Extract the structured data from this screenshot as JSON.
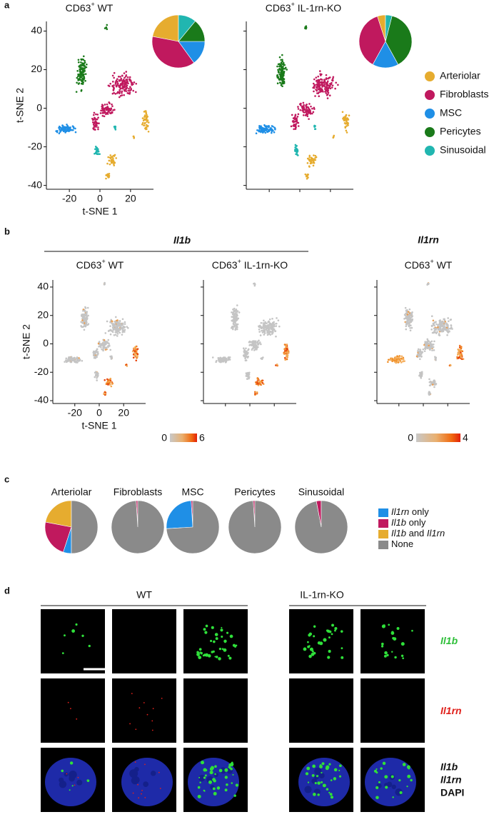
{
  "panel_a": {
    "label": "a",
    "plot_titles": [
      {
        "main": "CD63",
        "sup": "+",
        "rest": " WT"
      },
      {
        "main": "CD63",
        "sup": "+",
        "rest": " IL-1rn-KO"
      }
    ],
    "y_axis_title": "t-SNE 2",
    "x_axis_title": "t-SNE 1",
    "xlim": [
      -35,
      35
    ],
    "ylim": [
      -42,
      45
    ],
    "xticks": [
      -20,
      0,
      20
    ],
    "yticks": [
      40,
      20,
      0,
      -20,
      -40
    ],
    "legend": {
      "names": [
        "Arteriolar",
        "Fibroblasts",
        "MSC",
        "Pericytes",
        "Sinusoidal"
      ],
      "colors": [
        "#e6ac2f",
        "#c0195e",
        "#1f8fe6",
        "#1a7a1a",
        "#21b6b0"
      ]
    },
    "pies": [
      {
        "type": "pie",
        "values": [
          22,
          38,
          15,
          14,
          11
        ]
      },
      {
        "type": "pie",
        "values": [
          5,
          37,
          16,
          38,
          4
        ]
      }
    ]
  },
  "panel_b": {
    "label": "b",
    "gene_headers": [
      {
        "text": "Il1b"
      },
      {
        "text": "Il1rn"
      }
    ],
    "plot_titles": [
      {
        "main": "CD63",
        "sup": "+",
        "rest": " WT"
      },
      {
        "main": "CD63",
        "sup": "+",
        "rest": " IL-1rn-KO"
      },
      {
        "main": "CD63",
        "sup": "+",
        "rest": " WT"
      }
    ],
    "y_axis_title": "t-SNE 2",
    "x_axis_title": "t-SNE 1",
    "xlim": [
      -38,
      38
    ],
    "ylim": [
      -42,
      45
    ],
    "xticks": [
      -20,
      0,
      20
    ],
    "yticks": [
      40,
      20,
      0,
      -20,
      -40
    ],
    "colorbars": [
      {
        "min": 0,
        "max": 6
      },
      {
        "min": 0,
        "max": 4
      }
    ]
  },
  "panel_c": {
    "label": "c",
    "chart_data": {
      "type": "pie",
      "categories": [
        "Arteriolar",
        "Fibroblasts",
        "MSC",
        "Pericytes",
        "Sinusoidal"
      ],
      "series": [
        {
          "name": [
            {
              "text": "Il1rn",
              "italic": true
            },
            {
              "text": " only"
            }
          ],
          "color": "#1f8fe6",
          "values": [
            5,
            0,
            25,
            0,
            0
          ]
        },
        {
          "name": [
            {
              "text": "Il1b",
              "italic": true
            },
            {
              "text": " only"
            }
          ],
          "color": "#c0195e",
          "values": [
            23,
            1,
            1,
            1,
            3
          ]
        },
        {
          "name": [
            {
              "text": "Il1b",
              "italic": true
            },
            {
              "text": " and "
            },
            {
              "text": "Il1rn",
              "italic": true
            }
          ],
          "color": "#e6ac2f",
          "values": [
            22,
            0,
            0,
            0,
            0
          ]
        },
        {
          "name": [
            {
              "text": "None"
            }
          ],
          "color": "#8a8a8a",
          "values": [
            50,
            99,
            74,
            99,
            97
          ]
        }
      ]
    }
  },
  "panel_d": {
    "label": "d",
    "groups": [
      {
        "title": "WT"
      },
      {
        "title": "IL-1rn-KO"
      }
    ],
    "row_labels": [
      [
        {
          "text": "Il1b",
          "color": "#2fbf3a"
        }
      ],
      [
        {
          "text": "Il1rn",
          "color": "#e0201b"
        }
      ],
      [
        {
          "text": "Il1b",
          "color": "#2fbf3a"
        },
        {
          "text": "Il1rn",
          "color": "#e0201b"
        },
        {
          "text": "DAPI",
          "color": "#3f6fd8"
        }
      ]
    ]
  }
}
